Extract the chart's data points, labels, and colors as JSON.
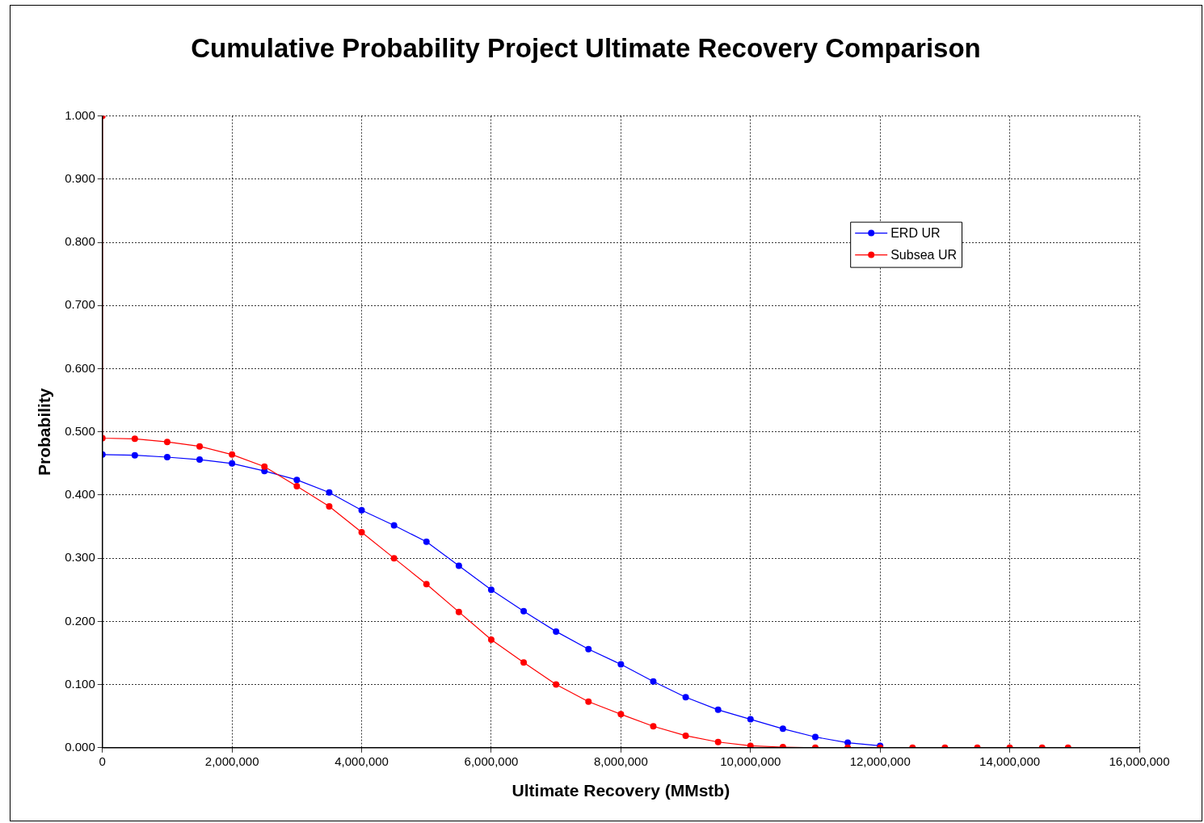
{
  "chart_data": {
    "type": "line",
    "title": "Cumulative Probability Project Ultimate Recovery Comparison",
    "xlabel": "Ultimate Recovery (MMstb)",
    "ylabel": "Probability",
    "xlim": [
      0,
      16000000
    ],
    "ylim": [
      0,
      1
    ],
    "xticks": [
      0,
      {
        "value": 2000000,
        "label": "2,000,000"
      },
      {
        "value": 4000000,
        "label": "4,000,000"
      },
      {
        "value": 6000000,
        "label": "6,000,000"
      },
      {
        "value": 8000000,
        "label": "8,000,000"
      },
      {
        "value": 10000000,
        "label": "10,000,000"
      },
      {
        "value": 12000000,
        "label": "12,000,000"
      },
      {
        "value": 14000000,
        "label": "14,000,000"
      },
      {
        "value": 16000000,
        "label": "16,000,000"
      }
    ],
    "yticks": [
      {
        "value": 0,
        "label": "0.000"
      },
      {
        "value": 0.1,
        "label": "0.100"
      },
      {
        "value": 0.2,
        "label": "0.200"
      },
      {
        "value": 0.3,
        "label": "0.300"
      },
      {
        "value": 0.4,
        "label": "0.400"
      },
      {
        "value": 0.5,
        "label": "0.500"
      },
      {
        "value": 0.6,
        "label": "0.600"
      },
      {
        "value": 0.7,
        "label": "0.700"
      },
      {
        "value": 0.8,
        "label": "0.800"
      },
      {
        "value": 0.9,
        "label": "0.900"
      },
      {
        "value": 1,
        "label": "1.000"
      }
    ],
    "grid": true,
    "legend": "top right",
    "marker": "circle",
    "line_style": "solid",
    "series": [
      {
        "name": "ERD UR",
        "color": "#0000ff",
        "x": [
          0,
          500000,
          1000000,
          1500000,
          2000000,
          2500000,
          3000000,
          3500000,
          4000000,
          4500000,
          5000000,
          5500000,
          6000000,
          6500000,
          7000000,
          7500000,
          8000000,
          8500000,
          9000000,
          9500000,
          10000000,
          10500000,
          11000000,
          11500000,
          12000000
        ],
        "values": [
          0.464,
          0.463,
          0.46,
          0.456,
          0.45,
          0.438,
          0.424,
          0.404,
          0.376,
          0.352,
          0.326,
          0.288,
          0.25,
          0.216,
          0.184,
          0.156,
          0.132,
          0.105,
          0.08,
          0.06,
          0.045,
          0.03,
          0.017,
          0.008,
          0.003
        ]
      },
      {
        "name": "Subsea UR",
        "color": "#ff0000",
        "x": [
          0,
          0,
          500000,
          1000000,
          1500000,
          2000000,
          2500000,
          3000000,
          3500000,
          4000000,
          4500000,
          5000000,
          5500000,
          6000000,
          6500000,
          7000000,
          7500000,
          8000000,
          8500000,
          9000000,
          9500000,
          10000000,
          10500000,
          11000000,
          11500000,
          12000000,
          12500000,
          13000000,
          13500000,
          14000000,
          14500000,
          14900000
        ],
        "values": [
          1,
          0.49,
          0.489,
          0.484,
          0.477,
          0.464,
          0.445,
          0.414,
          0.382,
          0.341,
          0.3,
          0.259,
          0.215,
          0.171,
          0.135,
          0.1,
          0.073,
          0.053,
          0.034,
          0.019,
          0.009,
          0.003,
          0.001,
          0,
          0,
          0,
          0,
          0,
          0,
          0,
          0,
          0
        ]
      }
    ]
  }
}
